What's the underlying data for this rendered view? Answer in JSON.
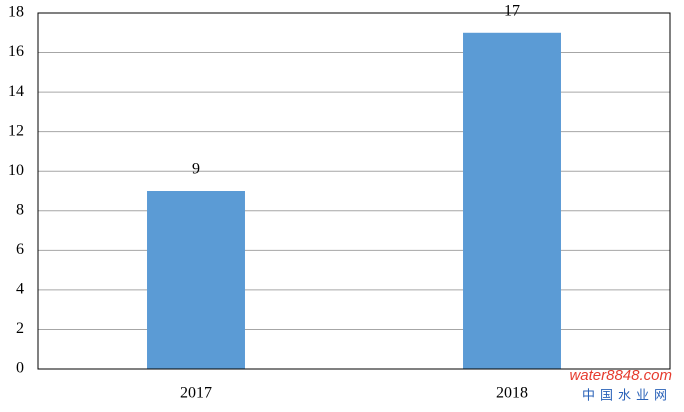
{
  "chart_data": {
    "type": "bar",
    "categories": [
      "2017",
      "2018"
    ],
    "values": [
      9,
      17
    ],
    "color": "#5b9bd5",
    "ylim": [
      0,
      18
    ],
    "yticks": [
      0,
      2,
      4,
      6,
      8,
      10,
      12,
      14,
      16,
      18
    ],
    "grid": true,
    "data_labels": true,
    "watermark": "water8848.com",
    "watermark_subtitle": "中国水业网"
  }
}
